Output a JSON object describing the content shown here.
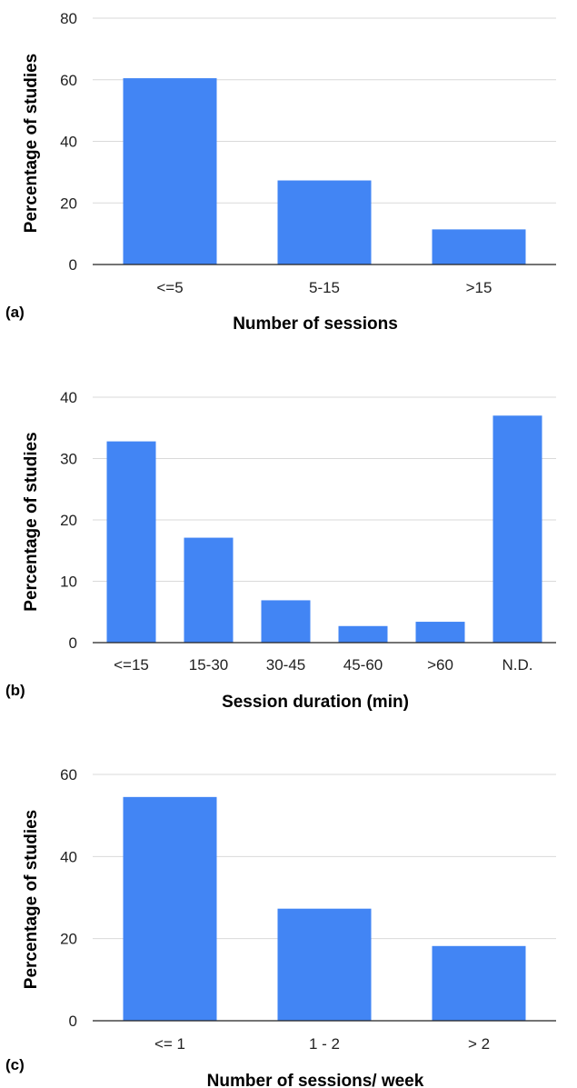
{
  "chart_data": [
    {
      "type": "bar",
      "panel_label": "(a)",
      "categories": [
        "<=5",
        "5-15",
        ">15"
      ],
      "values": [
        60.5,
        27.3,
        11.4
      ],
      "xlabel": "Number of sessions",
      "ylabel": "Percentage of studies",
      "ylim": [
        0,
        80
      ],
      "yticks": [
        0,
        20,
        40,
        60,
        80
      ],
      "grid": true,
      "color": "#4285f4"
    },
    {
      "type": "bar",
      "panel_label": "(b)",
      "categories": [
        "<=15",
        "15-30",
        "30-45",
        "45-60",
        ">60",
        "N.D."
      ],
      "values": [
        32.8,
        17.1,
        6.9,
        2.7,
        3.4,
        37.0
      ],
      "xlabel": "Session duration (min)",
      "ylabel": "Percentage of studies",
      "ylim": [
        0,
        40
      ],
      "yticks": [
        0,
        10,
        20,
        30,
        40
      ],
      "grid": true,
      "color": "#4285f4"
    },
    {
      "type": "bar",
      "panel_label": "(c)",
      "categories": [
        "<= 1",
        "1 - 2",
        "> 2"
      ],
      "values": [
        54.5,
        27.3,
        18.2
      ],
      "xlabel": "Number of sessions/ week",
      "ylabel": "Percentage of studies",
      "ylim": [
        0,
        60
      ],
      "yticks": [
        0,
        20,
        40,
        60
      ],
      "grid": true,
      "color": "#4285f4"
    }
  ]
}
